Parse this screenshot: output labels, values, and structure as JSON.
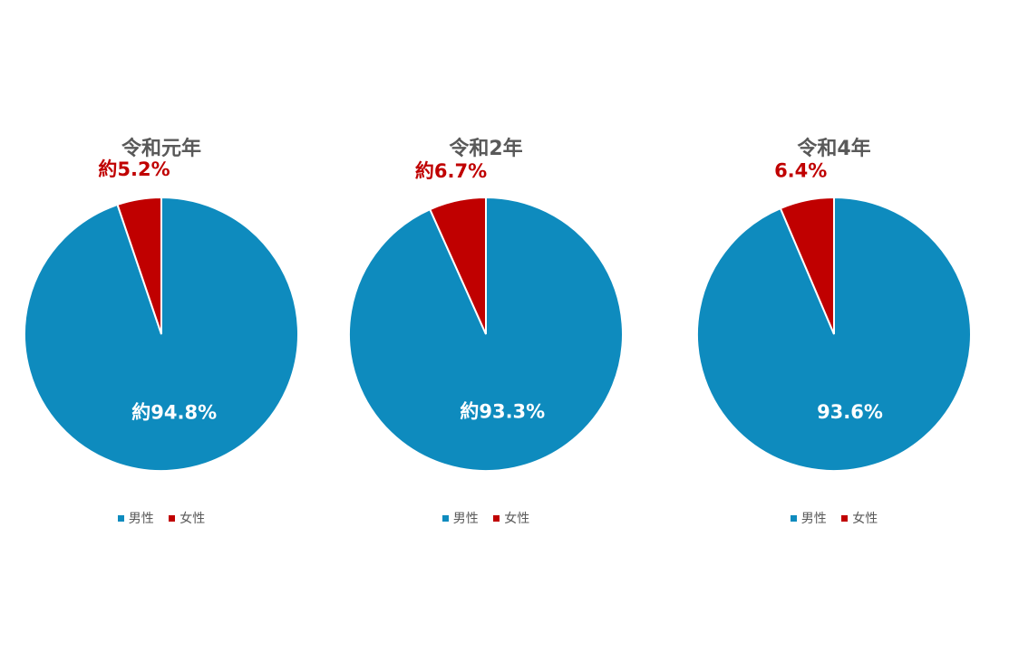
{
  "chart_data": [
    {
      "type": "pie",
      "title": "令和元年",
      "legend_position": "bottom",
      "slices": [
        {
          "label": "男性",
          "value": 94.8,
          "data_label": "約94.8%",
          "color": "#0E8BBE"
        },
        {
          "label": "女性",
          "value": 5.2,
          "data_label": "約5.2%",
          "color": "#C00000"
        }
      ]
    },
    {
      "type": "pie",
      "title": "令和2年",
      "legend_position": "bottom",
      "slices": [
        {
          "label": "男性",
          "value": 93.3,
          "data_label": "約93.3%",
          "color": "#0E8BBE"
        },
        {
          "label": "女性",
          "value": 6.7,
          "data_label": "約6.7%",
          "color": "#C00000"
        }
      ]
    },
    {
      "type": "pie",
      "title": "令和4年",
      "legend_position": "bottom",
      "slices": [
        {
          "label": "男性",
          "value": 93.6,
          "data_label": "93.6%",
          "color": "#0E8BBE"
        },
        {
          "label": "女性",
          "value": 6.4,
          "data_label": "6.4%",
          "color": "#C00000"
        }
      ]
    }
  ]
}
